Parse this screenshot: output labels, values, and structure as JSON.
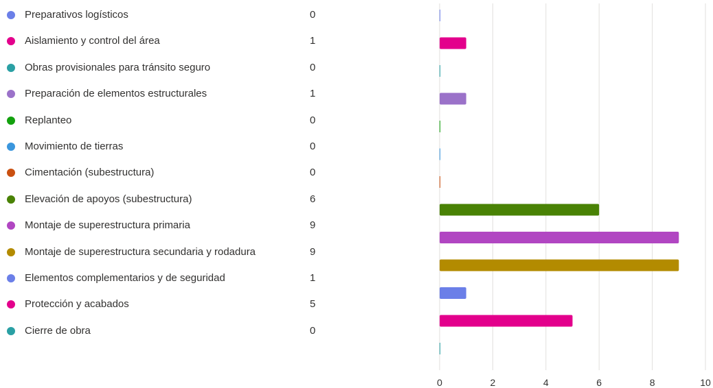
{
  "chart_data": {
    "type": "bar",
    "orientation": "horizontal",
    "categories": [
      "Preparativos logísticos",
      "Aislamiento y control del área",
      "Obras provisionales para tránsito seguro",
      "Preparación de elementos estructurales",
      "Replanteo",
      "Movimiento de tierras",
      "Cimentación (subestructura)",
      "Elevación de apoyos (subestructura)",
      "Montaje de superestructura primaria",
      "Montaje de superestructura secundaria y rodadura",
      "Elementos complementarios y de seguridad",
      "Protección y acabados",
      "Cierre de obra"
    ],
    "values": [
      0,
      1,
      0,
      1,
      0,
      0,
      0,
      6,
      9,
      9,
      1,
      5,
      0
    ],
    "colors": [
      "#6b7fe8",
      "#e3008c",
      "#2aa0a4",
      "#9b72c9",
      "#13a10e",
      "#3a96dd",
      "#ca5010",
      "#498205",
      "#b146c2",
      "#b38b00",
      "#6b7fe8",
      "#e3008c",
      "#2aa0a4"
    ],
    "xlim": [
      0,
      10
    ],
    "xticks": [
      "0",
      "2",
      "4",
      "6",
      "8",
      "10"
    ],
    "grid": true,
    "legend": "left"
  }
}
